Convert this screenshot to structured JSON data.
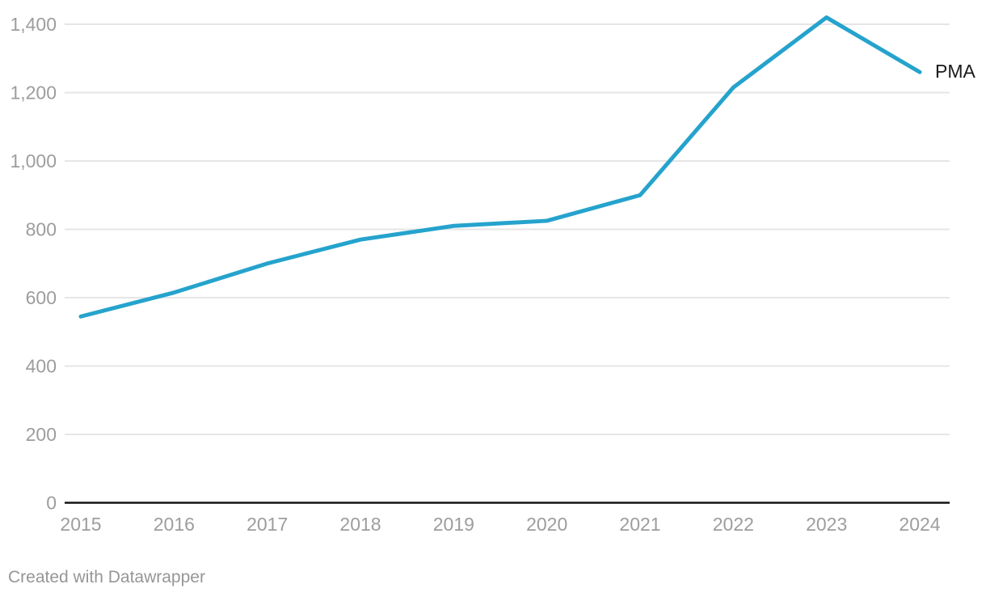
{
  "chart": {
    "series_label": "PMA",
    "footer": "Created with Datawrapper",
    "colors": {
      "line": "#25a3cd",
      "axis": "#141414",
      "grid": "#e6e6e6",
      "tick_label": "#9d9d9d",
      "series_label": "#1a1a1a",
      "footer_text": "#969696"
    }
  },
  "chart_data": {
    "type": "line",
    "title": "",
    "xlabel": "",
    "ylabel": "",
    "x": [
      2015,
      2016,
      2017,
      2018,
      2019,
      2020,
      2021,
      2022,
      2023,
      2024
    ],
    "series": [
      {
        "name": "PMA",
        "values": [
          545,
          615,
          700,
          770,
          810,
          825,
          900,
          1215,
          1420,
          1260
        ]
      }
    ],
    "ylim": [
      0,
      1400
    ],
    "yticks": [
      0,
      200,
      400,
      600,
      800,
      1000,
      1200,
      1400
    ],
    "grid": true,
    "legend_position": "end-of-line",
    "annotations": [
      "PMA"
    ]
  }
}
